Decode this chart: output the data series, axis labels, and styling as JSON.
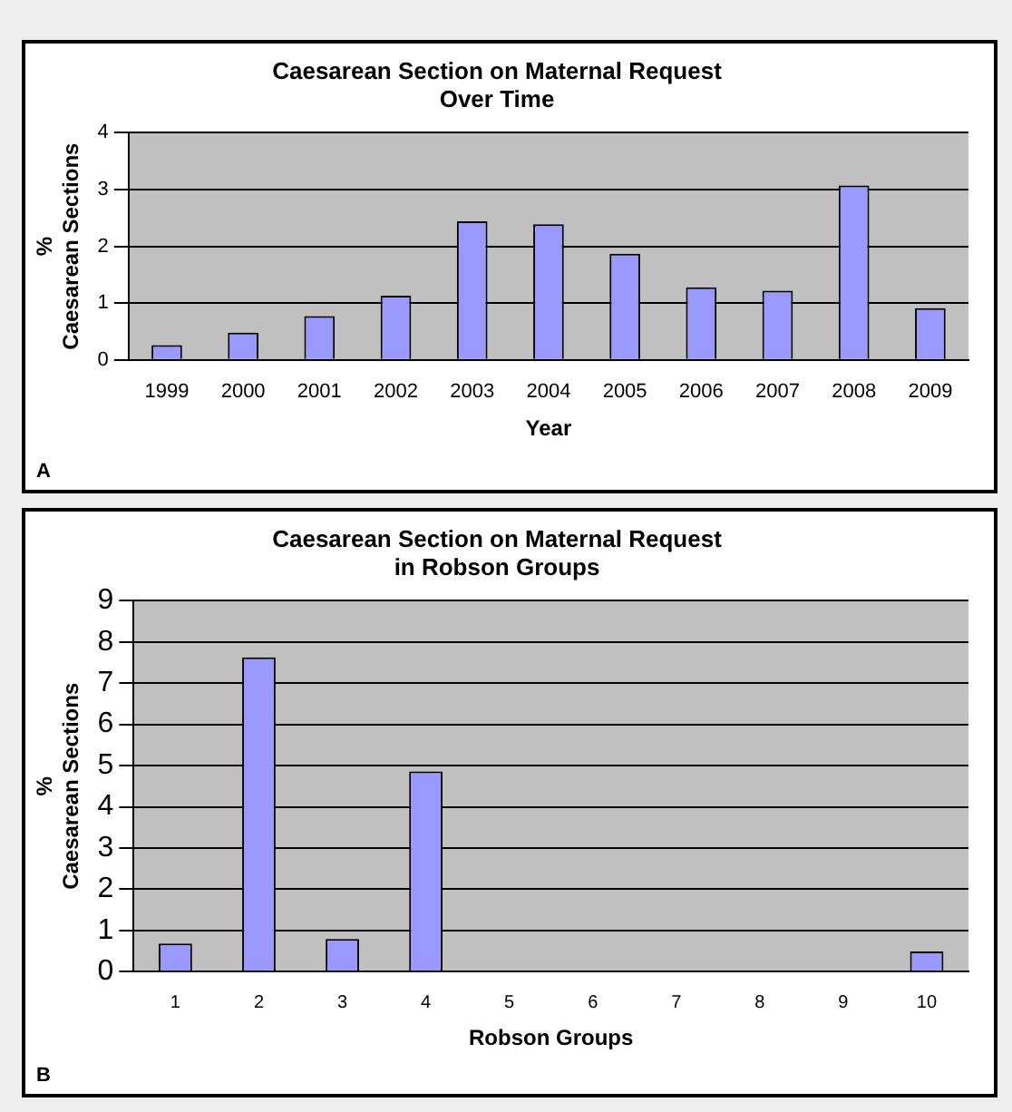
{
  "chart_data": [
    {
      "type": "bar",
      "title": "Caesarean Section on Maternal Request\nOver Time",
      "xlabel": "Year",
      "ylabel": "%\nCaesarean Sections",
      "categories": [
        "1999",
        "2000",
        "2001",
        "2002",
        "2003",
        "2004",
        "2005",
        "2006",
        "2007",
        "2008",
        "2009"
      ],
      "values": [
        0.26,
        0.48,
        0.77,
        1.13,
        2.44,
        2.39,
        1.87,
        1.28,
        1.22,
        3.07,
        0.91
      ],
      "color": "#9999ff",
      "ylim": [
        0,
        4
      ],
      "yticks": [
        0,
        1,
        2,
        3,
        4
      ],
      "grid": "y",
      "legend": false,
      "annotations": [
        "A"
      ]
    },
    {
      "type": "bar",
      "title": "Caesarean Section on Maternal Request\nin Robson Groups",
      "xlabel": "Robson Groups",
      "ylabel": "%\nCaesarean Sections",
      "categories": [
        "1",
        "2",
        "3",
        "4",
        "5",
        "6",
        "7",
        "8",
        "9",
        "10"
      ],
      "values": [
        0.68,
        7.63,
        0.79,
        4.86,
        0,
        0,
        0,
        0,
        0,
        0.49
      ],
      "color": "#9999ff",
      "ylim": [
        0,
        9
      ],
      "yticks": [
        0,
        1,
        2,
        3,
        4,
        5,
        6,
        7,
        8,
        9
      ],
      "grid": "y",
      "legend": false,
      "annotations": [
        "B"
      ]
    }
  ]
}
